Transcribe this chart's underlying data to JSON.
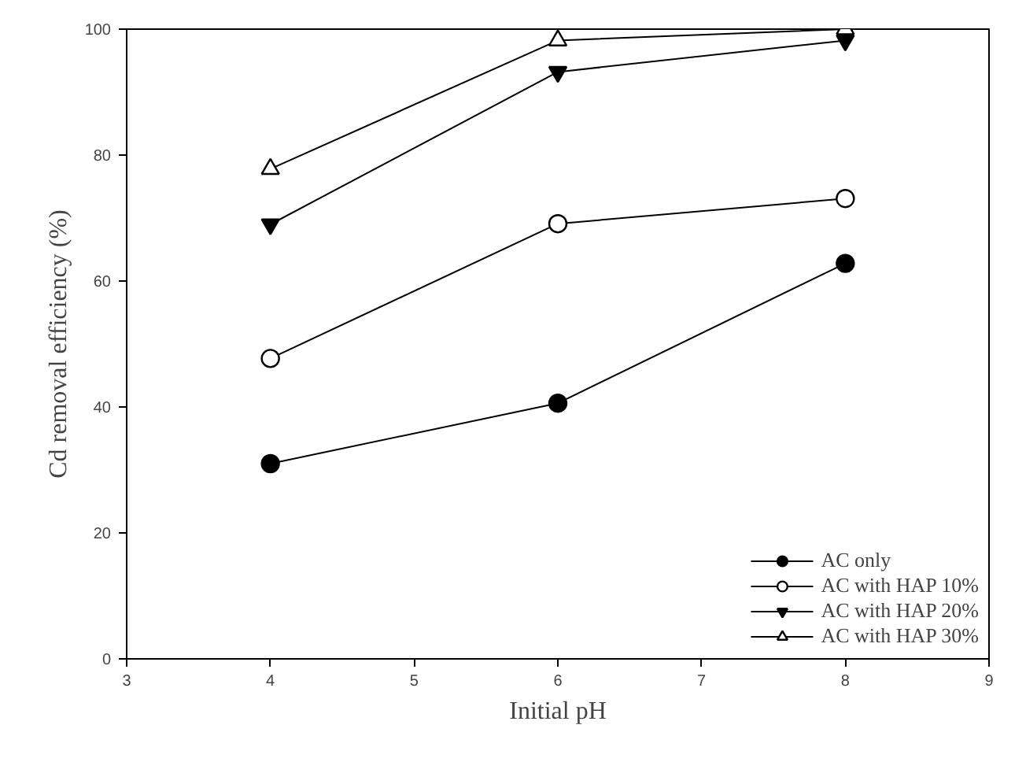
{
  "chart_data": {
    "type": "line",
    "xlabel": "Initial pH",
    "ylabel": "Cd removal efficiency (%)",
    "x": [
      4,
      6,
      8
    ],
    "series": [
      {
        "name": "AC only",
        "color": "#000000",
        "marker": "circle",
        "values": [
          31,
          40.6,
          62.8
        ]
      },
      {
        "name": "AC with HAP 10%",
        "color": "#000000",
        "marker": "circle",
        "values": [
          47.7,
          69.1,
          73.1
        ]
      },
      {
        "name": "AC with HAP 20%",
        "color": "#000000",
        "marker": "triangle",
        "values": [
          69,
          93.2,
          98.2
        ]
      },
      {
        "name": "AC with HAP 30%",
        "color": "#000000",
        "marker": "triangle",
        "values": [
          77.8,
          98.2,
          100
        ]
      }
    ],
    "xlim": [
      3,
      9
    ],
    "xticks": [
      3,
      4,
      5,
      6,
      7,
      8,
      9
    ],
    "ylim": [
      0,
      100
    ],
    "yticks": [
      0,
      20,
      40,
      60,
      80,
      100
    ],
    "grid": false,
    "legend": "bottom right",
    "line_style": "solid"
  }
}
